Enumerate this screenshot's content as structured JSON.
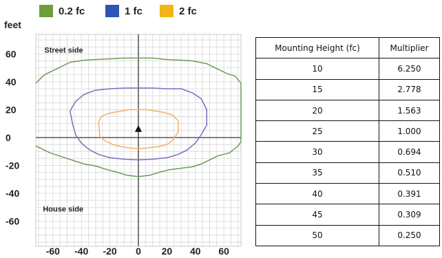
{
  "chart_data": {
    "type": "line",
    "ylabel": "feet",
    "x_ticks": [
      -60,
      -40,
      -20,
      0,
      20,
      40,
      60
    ],
    "y_ticks": [
      60,
      40,
      20,
      0,
      -20,
      -40,
      -60
    ],
    "xlim": [
      -72,
      72
    ],
    "ylim": [
      -78,
      74
    ],
    "grid": true,
    "legend_position": "top",
    "annotations": [
      {
        "text": "Street side",
        "x": -66,
        "y": 61
      },
      {
        "text": "House side",
        "x": -67,
        "y": -53
      }
    ],
    "fixture_marker": {
      "x": 0,
      "y": 6
    },
    "series": [
      {
        "name": "0.2 fc",
        "color": "#6e9a58",
        "points": [
          [
            -72,
            39
          ],
          [
            -66,
            45
          ],
          [
            -58,
            49
          ],
          [
            -48,
            54
          ],
          [
            -38,
            55.5
          ],
          [
            -30,
            56
          ],
          [
            -20,
            56.5
          ],
          [
            -10,
            57
          ],
          [
            0,
            57
          ],
          [
            10,
            57
          ],
          [
            20,
            56
          ],
          [
            30,
            55.5
          ],
          [
            38,
            55
          ],
          [
            48,
            53
          ],
          [
            56,
            49
          ],
          [
            62,
            46
          ],
          [
            68,
            44
          ],
          [
            72,
            39
          ],
          [
            72,
            -3
          ],
          [
            70,
            -6
          ],
          [
            64,
            -11
          ],
          [
            56,
            -13
          ],
          [
            50,
            -16
          ],
          [
            44,
            -19
          ],
          [
            38,
            -21
          ],
          [
            30,
            -22
          ],
          [
            22,
            -23
          ],
          [
            16,
            -24.5
          ],
          [
            8,
            -27
          ],
          [
            0,
            -28
          ],
          [
            -8,
            -27
          ],
          [
            -16,
            -24.5
          ],
          [
            -22,
            -23
          ],
          [
            -28,
            -21
          ],
          [
            -32,
            -20
          ],
          [
            -38,
            -19
          ],
          [
            -44,
            -17
          ],
          [
            -50,
            -15
          ],
          [
            -56,
            -13
          ],
          [
            -62,
            -11
          ],
          [
            -68,
            -8
          ],
          [
            -72,
            -6
          ]
        ]
      },
      {
        "name": "1 fc",
        "color": "#7a6cc0",
        "points": [
          [
            -48,
            19
          ],
          [
            -44,
            26
          ],
          [
            -38,
            31
          ],
          [
            -30,
            34
          ],
          [
            -20,
            35
          ],
          [
            -10,
            35.5
          ],
          [
            0,
            35.5
          ],
          [
            10,
            35.5
          ],
          [
            20,
            35
          ],
          [
            30,
            35
          ],
          [
            38,
            32
          ],
          [
            44,
            28
          ],
          [
            48,
            20
          ],
          [
            48,
            9
          ],
          [
            44,
            2
          ],
          [
            40,
            -4
          ],
          [
            34,
            -9
          ],
          [
            28,
            -12
          ],
          [
            20,
            -14.5
          ],
          [
            10,
            -15.5
          ],
          [
            0,
            -16
          ],
          [
            -10,
            -15.5
          ],
          [
            -20,
            -14.5
          ],
          [
            -28,
            -12
          ],
          [
            -34,
            -9
          ],
          [
            -40,
            -4
          ],
          [
            -44,
            2
          ],
          [
            -46,
            9
          ],
          [
            -48,
            19
          ]
        ]
      },
      {
        "name": "2 fc",
        "color": "#f0b060",
        "points": [
          [
            -28,
            11
          ],
          [
            -26,
            15
          ],
          [
            -22,
            17
          ],
          [
            -18,
            18
          ],
          [
            -12,
            19
          ],
          [
            -6,
            20
          ],
          [
            0,
            20
          ],
          [
            6,
            20
          ],
          [
            12,
            19
          ],
          [
            18,
            18
          ],
          [
            24,
            16
          ],
          [
            28,
            12
          ],
          [
            28,
            4
          ],
          [
            24,
            -2
          ],
          [
            20,
            -5
          ],
          [
            14,
            -6.5
          ],
          [
            6,
            -7.5
          ],
          [
            0,
            -8
          ],
          [
            -6,
            -7.5
          ],
          [
            -12,
            -6.5
          ],
          [
            -18,
            -5
          ],
          [
            -24,
            -2
          ],
          [
            -27,
            1
          ],
          [
            -28,
            11
          ]
        ]
      }
    ]
  },
  "legend": [
    {
      "label": "0.2 fc",
      "color": "#6e9f38"
    },
    {
      "label": "1 fc",
      "color": "#2e54b8"
    },
    {
      "label": "2 fc",
      "color": "#f2b416"
    }
  ],
  "table": {
    "headers": [
      "Mounting Height (fc)",
      "Multiplier"
    ],
    "rows": [
      [
        "10",
        "6.250"
      ],
      [
        "15",
        "2.778"
      ],
      [
        "20",
        "1.563"
      ],
      [
        "25",
        "1.000"
      ],
      [
        "30",
        "0.694"
      ],
      [
        "35",
        "0.510"
      ],
      [
        "40",
        "0.391"
      ],
      [
        "45",
        "0.309"
      ],
      [
        "50",
        "0.250"
      ]
    ]
  }
}
